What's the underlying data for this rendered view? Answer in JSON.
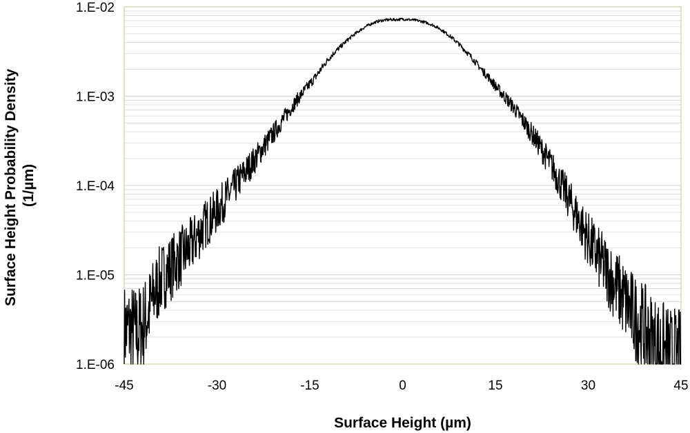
{
  "chart_data": {
    "type": "line",
    "title": "",
    "xlabel": "Surface Height (µm)",
    "ylabel_lines": [
      "Surface Height Probability Density",
      "(1/µm)"
    ],
    "x_scale": "linear",
    "y_scale": "log",
    "xlim": [
      -45,
      45
    ],
    "ylim": [
      1e-06,
      0.01
    ],
    "x_ticks": [
      -45,
      -30,
      -15,
      0,
      15,
      30,
      45
    ],
    "x_tick_labels": [
      "-45",
      "-30",
      "-15",
      "0",
      "15",
      "30",
      "45"
    ],
    "y_ticks": [
      1e-06,
      1e-05,
      0.0001,
      0.001,
      0.01
    ],
    "y_tick_labels": [
      "1.E-06",
      "1.E-05",
      "1.E-04",
      "1.E-03",
      "1.E-02"
    ],
    "grid": "horizontal major and minor",
    "legend": "none",
    "line_color": "#000000",
    "plot_border_color": "#d9d9b8",
    "grid_color": "#d9d9d9",
    "series": [
      {
        "x": [
          -45,
          -44,
          -43,
          -42,
          -41,
          -40,
          -39,
          -38,
          -37,
          -36,
          -35,
          -34,
          -33,
          -32,
          -31,
          -30,
          -29,
          -28,
          -27,
          -26,
          -25,
          -24,
          -23,
          -22,
          -21,
          -20,
          -19,
          -18,
          -17,
          -16,
          -15,
          -14,
          -13,
          -12,
          -11,
          -10,
          -9,
          -8,
          -7,
          -6,
          -5,
          -4,
          -3,
          -2,
          -1,
          0,
          1,
          2,
          3,
          4,
          5,
          6,
          7,
          8,
          9,
          10,
          11,
          12,
          13,
          14,
          15,
          16,
          17,
          18,
          19,
          20,
          21,
          22,
          23,
          24,
          25,
          26,
          27,
          28,
          29,
          30,
          31,
          32,
          33,
          34,
          35,
          36,
          37,
          38,
          39,
          40,
          41,
          42,
          43,
          44,
          45
        ],
        "y": [
          2.4e-06,
          2.5e-06,
          2.2e-06,
          2.6e-06,
          3.9e-06,
          6.5e-06,
          9e-06,
          1.1e-05,
          1.3e-05,
          1.55e-05,
          1.8e-05,
          2.2e-05,
          2.8e-05,
          3.6e-05,
          4.3e-05,
          5.2e-05,
          6.5e-05,
          8e-05,
          0.0001,
          0.000125,
          0.000155,
          0.00019,
          0.00024,
          0.0003,
          0.00037,
          0.00047,
          0.00059,
          0.00074,
          0.00092,
          0.00113,
          0.00137,
          0.00167,
          0.0021,
          0.0026,
          0.0031,
          0.0036,
          0.0042,
          0.0048,
          0.0054,
          0.006,
          0.0065,
          0.0069,
          0.0071,
          0.0072,
          0.0072,
          0.0073,
          0.0072,
          0.0071,
          0.0069,
          0.0066,
          0.0062,
          0.0057,
          0.0051,
          0.0045,
          0.0039,
          0.0033,
          0.0028,
          0.0023,
          0.0019,
          0.0016,
          0.0013,
          0.00108,
          0.0009,
          0.00074,
          0.00059,
          0.00047,
          0.00037,
          0.00029,
          0.00022,
          0.00017,
          0.000125,
          9.2e-05,
          6.7e-05,
          4.8e-05,
          3.5e-05,
          2.5e-05,
          1.85e-05,
          1.4e-05,
          1.1e-05,
          8.5e-06,
          6.5e-06,
          5e-06,
          3.8e-06,
          3e-06,
          2.4e-06,
          1.9e-06,
          1.6e-06,
          1.35e-06,
          1.15e-06,
          1.05e-06,
          1e-06
        ]
      }
    ]
  }
}
